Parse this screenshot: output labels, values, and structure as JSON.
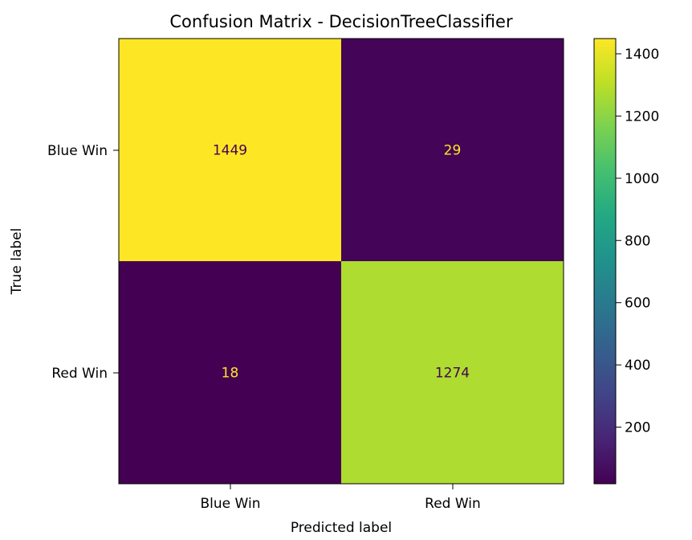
{
  "chart_data": {
    "type": "heatmap",
    "title": "Confusion Matrix - DecisionTreeClassifier",
    "xlabel": "Predicted label",
    "ylabel": "True label",
    "x_categories": [
      "Blue Win",
      "Red Win"
    ],
    "y_categories": [
      "Blue Win",
      "Red Win"
    ],
    "values": [
      [
        1449,
        29
      ],
      [
        18,
        1274
      ]
    ],
    "colormap": "viridis",
    "colorbar": {
      "min": 18,
      "max": 1449,
      "ticks": [
        200,
        400,
        600,
        800,
        1000,
        1200,
        1400
      ]
    },
    "grid": false
  },
  "colors": {
    "text_on_dark": "#fde725",
    "text_on_light": "#440154"
  }
}
